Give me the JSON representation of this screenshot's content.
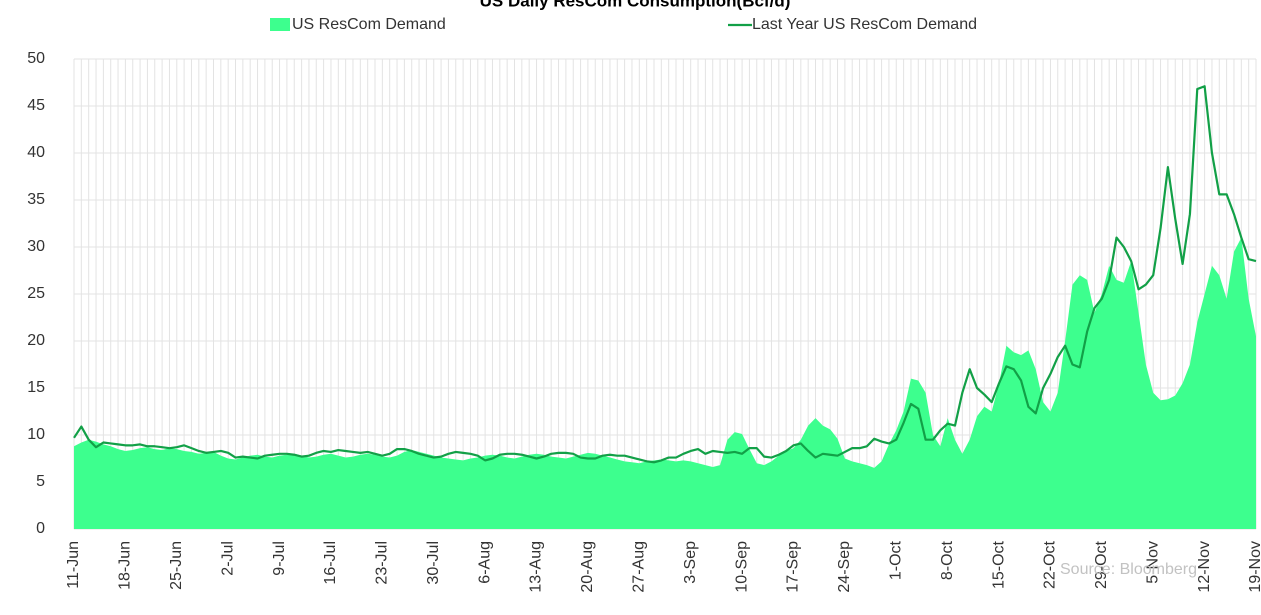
{
  "chart_data": {
    "type": "area-line",
    "title": "US Daily ResCom Consumption(Bcf/d)",
    "annotation": "Source: Bloomberg",
    "grid": true,
    "legend": "top",
    "categories": [
      "11-Jun",
      null,
      null,
      null,
      null,
      null,
      null,
      "18-Jun",
      null,
      null,
      null,
      null,
      null,
      null,
      "25-Jun",
      null,
      null,
      null,
      null,
      null,
      null,
      "2-Jul",
      null,
      null,
      null,
      null,
      null,
      null,
      "9-Jul",
      null,
      null,
      null,
      null,
      null,
      null,
      "16-Jul",
      null,
      null,
      null,
      null,
      null,
      null,
      "23-Jul",
      null,
      null,
      null,
      null,
      null,
      null,
      "30-Jul",
      null,
      null,
      null,
      null,
      null,
      null,
      "6-Aug",
      null,
      null,
      null,
      null,
      null,
      null,
      "13-Aug",
      null,
      null,
      null,
      null,
      null,
      null,
      "20-Aug",
      null,
      null,
      null,
      null,
      null,
      null,
      "27-Aug",
      null,
      null,
      null,
      null,
      null,
      null,
      "3-Sep",
      null,
      null,
      null,
      null,
      null,
      null,
      "10-Sep",
      null,
      null,
      null,
      null,
      null,
      null,
      "17-Sep",
      null,
      null,
      null,
      null,
      null,
      null,
      "24-Sep",
      null,
      null,
      null,
      null,
      null,
      null,
      "1-Oct",
      null,
      null,
      null,
      null,
      null,
      null,
      "8-Oct",
      null,
      null,
      null,
      null,
      null,
      null,
      "15-Oct",
      null,
      null,
      null,
      null,
      null,
      null,
      "22-Oct",
      null,
      null,
      null,
      null,
      null,
      null,
      "29-Oct",
      null,
      null,
      null,
      null,
      null,
      null,
      "5-Nov",
      null,
      null,
      null,
      null,
      null,
      null,
      "12-Nov",
      null,
      null,
      null,
      null,
      null,
      null,
      "19-Nov"
    ],
    "series": [
      {
        "name": "US ResCom Demand",
        "kind": "area",
        "color": "#3dff8e",
        "values": [
          8.8,
          9.2,
          9.5,
          9.3,
          9.0,
          8.8,
          8.5,
          8.3,
          8.4,
          8.6,
          8.7,
          8.5,
          8.4,
          8.6,
          8.5,
          8.3,
          8.2,
          8.0,
          8.1,
          8.2,
          7.8,
          7.5,
          7.4,
          7.6,
          7.8,
          7.9,
          7.7,
          7.6,
          7.8,
          7.9,
          8.0,
          7.8,
          7.6,
          7.7,
          7.9,
          8.0,
          7.8,
          7.6,
          7.7,
          7.9,
          8.0,
          7.9,
          7.7,
          7.6,
          7.8,
          8.2,
          8.4,
          8.2,
          8.0,
          7.8,
          7.6,
          7.5,
          7.4,
          7.3,
          7.5,
          7.6,
          7.8,
          7.9,
          7.8,
          7.6,
          7.5,
          7.7,
          7.9,
          8.0,
          7.9,
          7.7,
          7.6,
          7.5,
          7.7,
          7.9,
          8.1,
          8.0,
          7.8,
          7.6,
          7.4,
          7.2,
          7.1,
          7.0,
          7.2,
          7.3,
          7.4,
          7.3,
          7.2,
          7.3,
          7.2,
          7.0,
          6.8,
          6.6,
          6.8,
          9.5,
          10.3,
          10.1,
          8.5,
          7.0,
          6.8,
          7.2,
          7.8,
          8.3,
          8.6,
          9.5,
          11.0,
          11.8,
          11.0,
          10.6,
          9.6,
          7.5,
          7.2,
          7.0,
          6.8,
          6.5,
          7.2,
          9.0,
          10.5,
          12.5,
          16.0,
          15.8,
          14.5,
          10.0,
          8.8,
          11.8,
          9.5,
          8.0,
          9.5,
          12.0,
          13.0,
          12.5,
          15.5,
          19.5,
          18.8,
          18.5,
          19.0,
          17.0,
          13.5,
          12.5,
          14.5,
          20.0,
          26.0,
          27.0,
          26.5,
          23.0,
          25.0,
          28.0,
          26.5,
          26.2,
          28.5,
          23,
          17.5,
          14.5,
          13.7,
          13.8,
          14.2,
          15.5,
          17.5,
          22,
          25,
          28,
          27,
          24.5,
          29.5,
          31,
          24.5,
          20.5
        ]
      },
      {
        "name": "Last Year US ResCom Demand",
        "kind": "line",
        "color": "#12a047",
        "values": [
          9.7,
          10.9,
          9.5,
          8.7,
          9.2,
          9.1,
          9.0,
          8.9,
          8.9,
          9.0,
          8.8,
          8.8,
          8.7,
          8.6,
          8.7,
          8.9,
          8.6,
          8.3,
          8.1,
          8.2,
          8.3,
          8.1,
          7.6,
          7.7,
          7.6,
          7.5,
          7.8,
          7.9,
          8.0,
          8.0,
          7.9,
          7.7,
          7.8,
          8.1,
          8.3,
          8.2,
          8.4,
          8.3,
          8.2,
          8.1,
          8.2,
          8.0,
          7.8,
          8.0,
          8.5,
          8.5,
          8.3,
          8.0,
          7.8,
          7.6,
          7.7,
          8.0,
          8.2,
          8.1,
          8.0,
          7.8,
          7.3,
          7.5,
          7.9,
          8.0,
          8.0,
          7.9,
          7.7,
          7.5,
          7.7,
          8.0,
          8.1,
          8.1,
          8.0,
          7.6,
          7.5,
          7.5,
          7.8,
          7.9,
          7.8,
          7.8,
          7.6,
          7.4,
          7.2,
          7.1,
          7.3,
          7.6,
          7.6,
          8.0,
          8.3,
          8.5,
          8.0,
          8.3,
          8.2,
          8.1,
          8.2,
          8.0,
          8.6,
          8.6,
          7.7,
          7.6,
          7.9,
          8.3,
          8.9,
          9.1,
          8.3,
          7.6,
          8.0,
          7.9,
          7.8,
          8.2,
          8.6,
          8.6,
          8.8,
          9.6,
          9.3,
          9.1,
          9.5,
          11.3,
          13.3,
          12.8,
          9.5,
          9.5,
          10.5,
          11.2,
          11.0,
          14.5,
          17.0,
          15.0,
          14.3,
          13.5,
          15.5,
          17.3,
          17.0,
          15.8,
          13.0,
          12.3,
          15.0,
          16.5,
          18.3,
          19.5,
          17.5,
          17.2,
          21.0,
          23.5,
          24.5,
          26.5,
          31.0,
          30.0,
          28.5,
          25.5,
          26.0,
          27.0,
          32.0,
          38.5,
          33.0,
          28.2,
          33.5,
          46.8,
          47.1,
          40.0,
          35.6,
          35.6,
          33.5,
          31.0,
          28.7,
          28.5
        ]
      }
    ],
    "ylim": [
      0,
      50
    ],
    "yticks": [
      0,
      5,
      10,
      15,
      20,
      25,
      30,
      35,
      40,
      45,
      50
    ]
  }
}
